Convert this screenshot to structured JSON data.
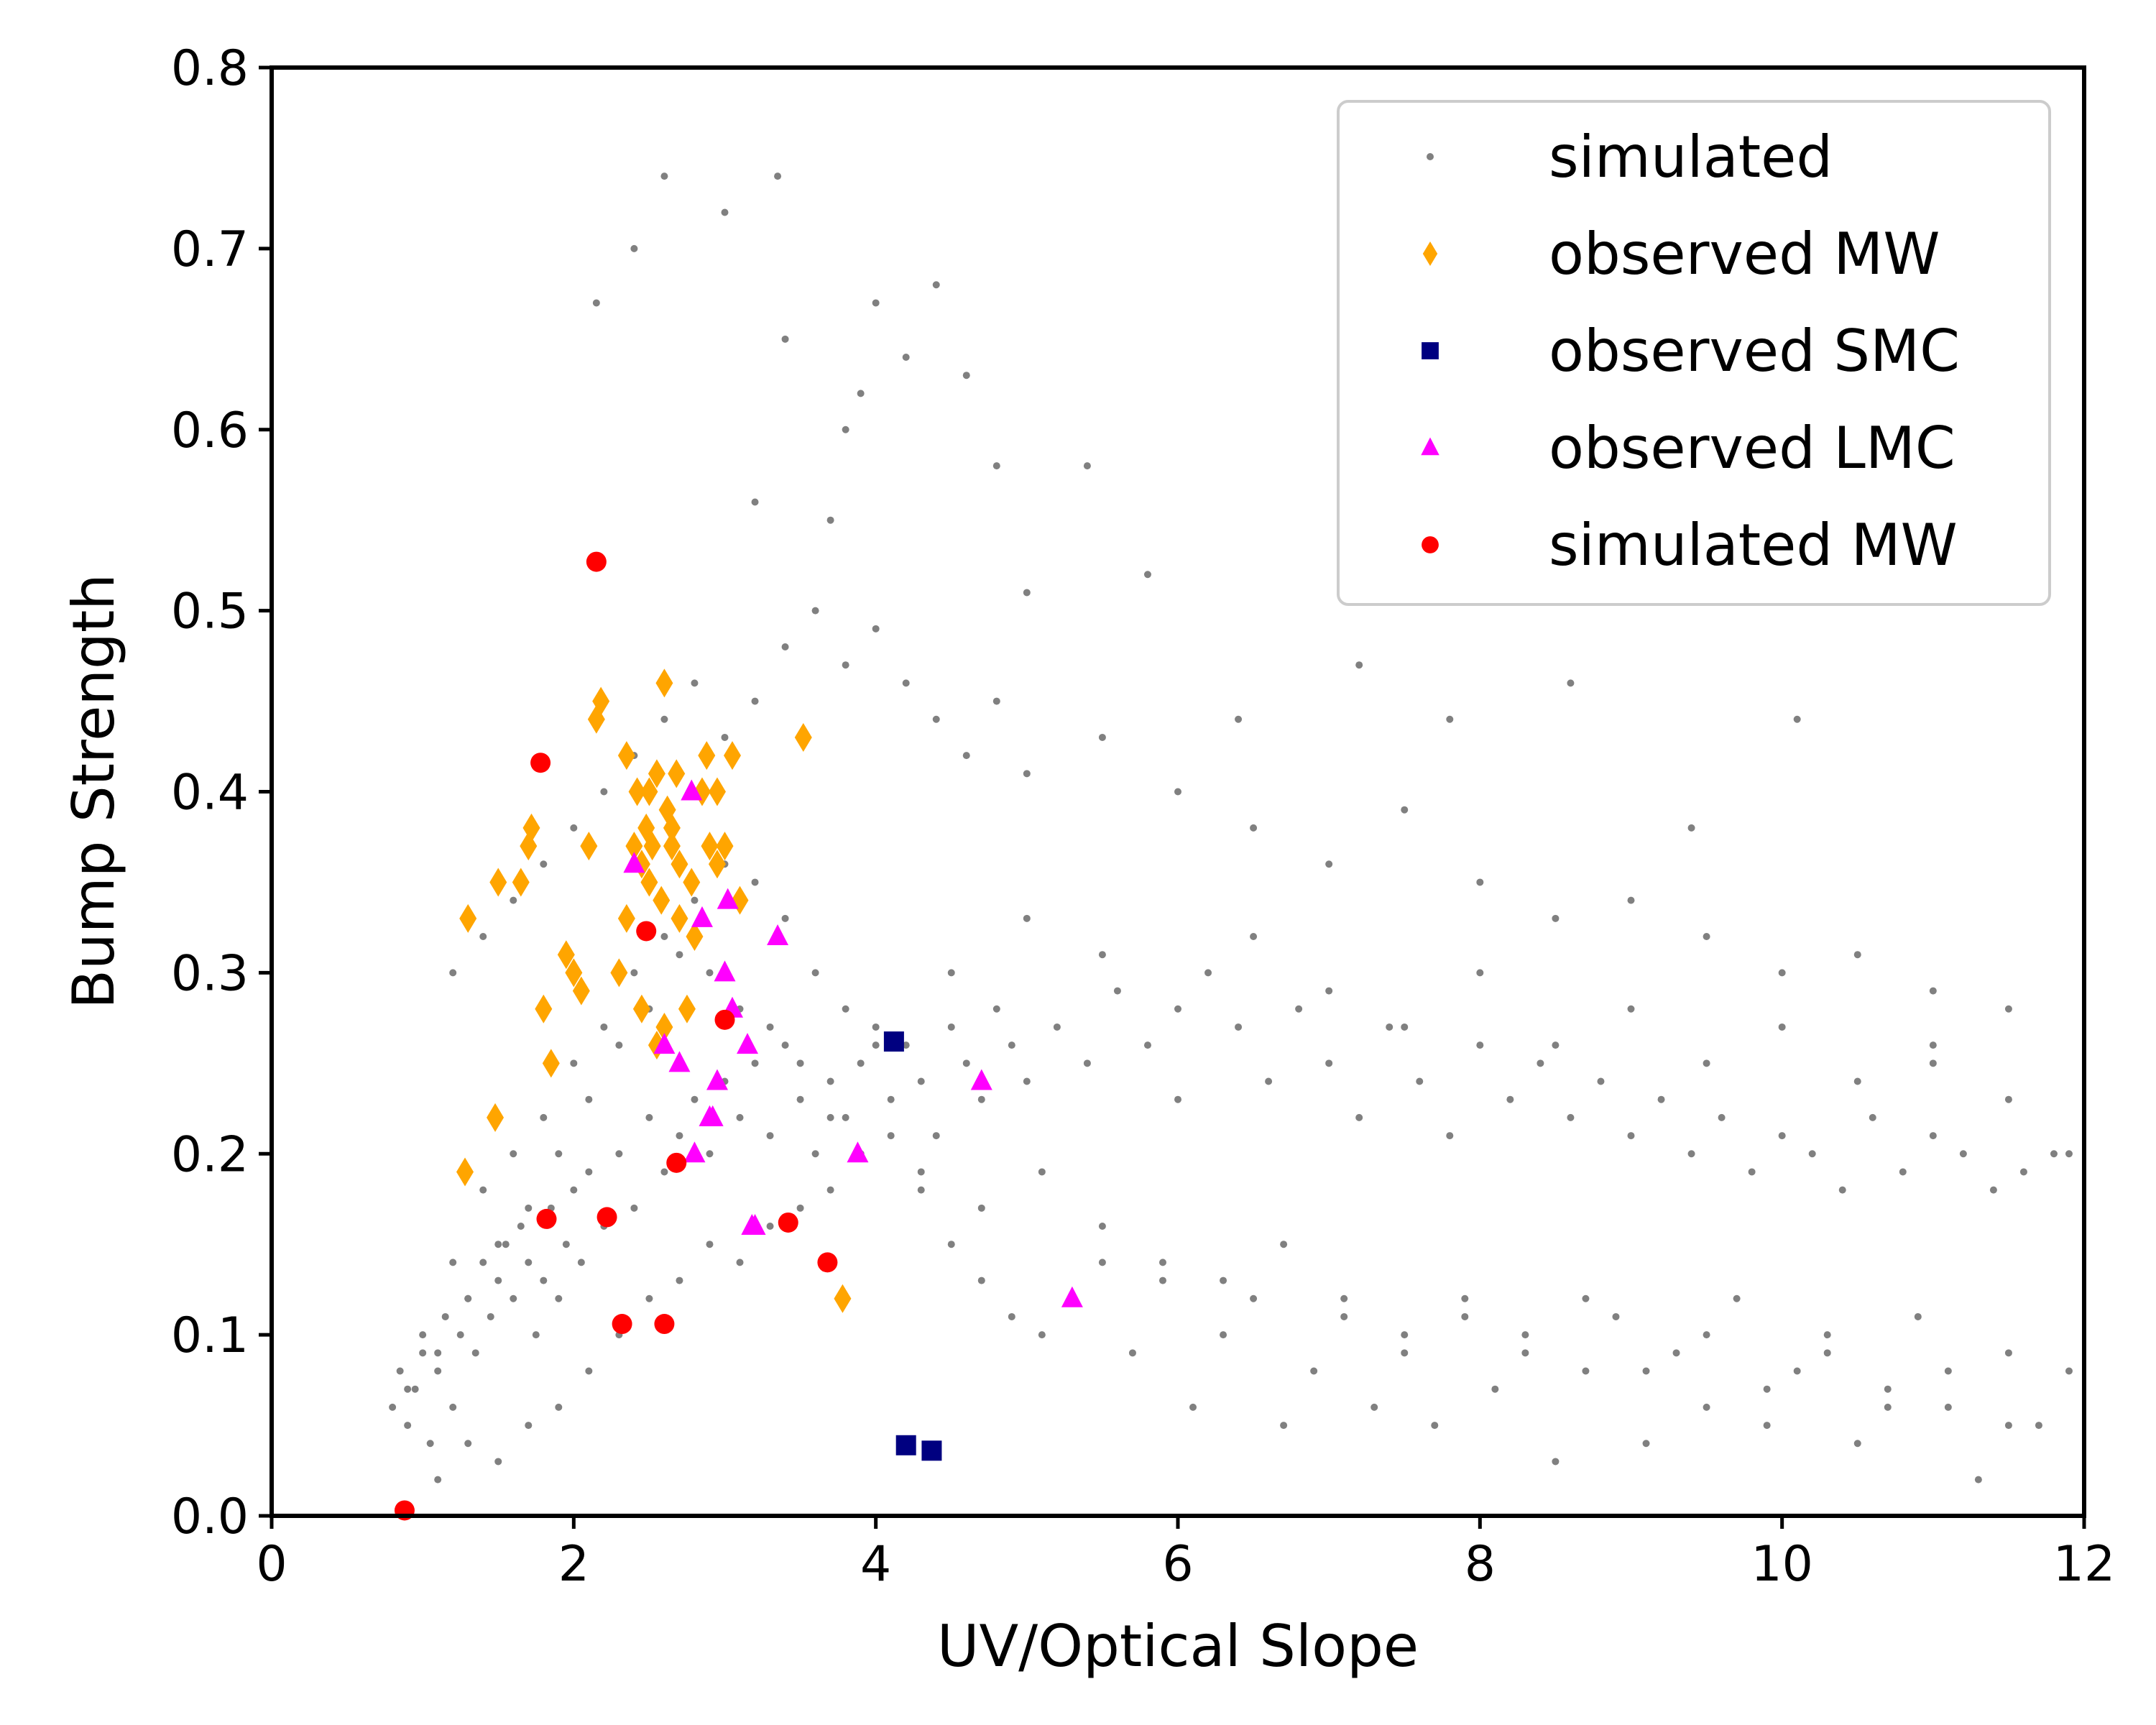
{
  "chart_data": {
    "type": "scatter",
    "title": "",
    "xlabel": "UV/Optical Slope",
    "ylabel": "Bump Strength",
    "xlim": [
      0,
      12
    ],
    "ylim": [
      0,
      0.8
    ],
    "xticks": [
      0,
      2,
      4,
      6,
      8,
      10,
      12
    ],
    "xtick_labels": [
      "0",
      "2",
      "4",
      "6",
      "8",
      "10",
      "12"
    ],
    "yticks": [
      0.0,
      0.1,
      0.2,
      0.3,
      0.4,
      0.5,
      0.6,
      0.7,
      0.8
    ],
    "ytick_labels": [
      "0.0",
      "0.1",
      "0.2",
      "0.3",
      "0.4",
      "0.5",
      "0.6",
      "0.7",
      "0.8"
    ],
    "grid": false,
    "legend_position": "top-right",
    "series": [
      {
        "name": "simulated",
        "marker": "point",
        "color": "#808080",
        "x": [
          0.8,
          0.85,
          0.9,
          0.95,
          1.0,
          1.05,
          1.1,
          1.15,
          1.2,
          1.25,
          1.3,
          1.35,
          1.4,
          1.45,
          1.5,
          1.55,
          1.6,
          1.65,
          1.7,
          1.75,
          1.8,
          1.85,
          1.9,
          1.95,
          2.0,
          2.05,
          2.1,
          2.2,
          2.3,
          2.4,
          2.5,
          2.6,
          2.7,
          2.8,
          2.9,
          3.0,
          3.1,
          3.2,
          3.3,
          3.4,
          3.5,
          3.6,
          3.7,
          3.8,
          3.9,
          4.0,
          4.1,
          4.2,
          4.3,
          4.4,
          4.5,
          4.6,
          4.7,
          4.8,
          4.9,
          5.0,
          5.2,
          5.4,
          5.6,
          5.8,
          6.0,
          6.2,
          6.4,
          6.6,
          6.8,
          7.0,
          7.2,
          7.4,
          7.6,
          7.8,
          8.0,
          8.2,
          8.4,
          8.6,
          8.8,
          9.0,
          9.2,
          9.4,
          9.6,
          9.8,
          10.0,
          10.2,
          10.4,
          10.6,
          10.8,
          11.0,
          11.2,
          11.4,
          11.6,
          11.8,
          1.1,
          1.3,
          1.5,
          1.7,
          1.9,
          2.1,
          2.3,
          2.5,
          2.7,
          2.9,
          3.1,
          3.3,
          3.5,
          3.7,
          3.9,
          4.1,
          4.3,
          4.5,
          4.7,
          4.9,
          5.1,
          5.3,
          5.5,
          5.7,
          5.9,
          6.1,
          6.3,
          6.5,
          6.7,
          6.9,
          7.1,
          7.3,
          7.5,
          7.7,
          7.9,
          8.1,
          8.3,
          8.5,
          8.7,
          8.9,
          9.1,
          9.3,
          9.5,
          9.7,
          9.9,
          10.1,
          10.3,
          10.5,
          10.7,
          10.9,
          11.1,
          11.3,
          11.5,
          11.7,
          11.9,
          1.2,
          1.4,
          1.6,
          1.8,
          2.0,
          2.2,
          2.4,
          2.6,
          2.8,
          3.0,
          3.2,
          3.4,
          3.6,
          3.8,
          4.0,
          4.2,
          4.4,
          4.6,
          4.8,
          5.0,
          5.5,
          6.0,
          6.5,
          7.0,
          7.5,
          8.0,
          8.5,
          9.0,
          9.5,
          10.0,
          10.5,
          11.0,
          11.5,
          2.15,
          2.4,
          2.6,
          3.2,
          3.35,
          3.7,
          3.9,
          4.0,
          4.4,
          4.8,
          5.4,
          3.0,
          3.4,
          3.8,
          4.2,
          4.6,
          5.0,
          5.8,
          6.4,
          7.2,
          7.8,
          8.6,
          9.4,
          10.1,
          11.0,
          1.0,
          1.2,
          1.4,
          1.6,
          1.8,
          2.0,
          2.2,
          2.4,
          2.6,
          2.8,
          3.0,
          3.2,
          3.4,
          3.6,
          3.8,
          4.0,
          4.5,
          5.0,
          5.5,
          6.0,
          6.5,
          7.0,
          7.5,
          8.0,
          8.5,
          9.0,
          9.5,
          10.0,
          10.5,
          11.0,
          11.5,
          11.9,
          0.9,
          1.1,
          1.3,
          1.5,
          1.7,
          1.9,
          2.1,
          2.3,
          2.5,
          2.7,
          2.9,
          3.1,
          3.3,
          3.5,
          3.7,
          3.9,
          4.3,
          4.7,
          5.1,
          5.5,
          5.9,
          6.3,
          6.7,
          7.1,
          7.5,
          7.9,
          8.3,
          8.7,
          9.1,
          9.5,
          9.9,
          10.3,
          10.7,
          11.1,
          11.5
        ],
        "y": [
          0.06,
          0.08,
          0.05,
          0.07,
          0.09,
          0.04,
          0.08,
          0.11,
          0.06,
          0.1,
          0.12,
          0.09,
          0.14,
          0.11,
          0.13,
          0.15,
          0.12,
          0.16,
          0.14,
          0.1,
          0.13,
          0.17,
          0.12,
          0.15,
          0.18,
          0.14,
          0.19,
          0.16,
          0.2,
          0.17,
          0.22,
          0.19,
          0.21,
          0.23,
          0.2,
          0.24,
          0.22,
          0.25,
          0.21,
          0.26,
          0.23,
          0.2,
          0.24,
          0.22,
          0.25,
          0.27,
          0.23,
          0.26,
          0.24,
          0.21,
          0.27,
          0.25,
          0.23,
          0.28,
          0.26,
          0.24,
          0.27,
          0.25,
          0.29,
          0.26,
          0.23,
          0.3,
          0.27,
          0.24,
          0.28,
          0.25,
          0.22,
          0.27,
          0.24,
          0.21,
          0.26,
          0.23,
          0.25,
          0.22,
          0.24,
          0.21,
          0.23,
          0.2,
          0.22,
          0.19,
          0.21,
          0.2,
          0.18,
          0.22,
          0.19,
          0.21,
          0.2,
          0.18,
          0.19,
          0.2,
          0.02,
          0.04,
          0.03,
          0.05,
          0.06,
          0.08,
          0.1,
          0.12,
          0.13,
          0.15,
          0.14,
          0.16,
          0.17,
          0.18,
          0.2,
          0.21,
          0.19,
          0.15,
          0.13,
          0.11,
          0.1,
          0.12,
          0.14,
          0.09,
          0.13,
          0.06,
          0.1,
          0.12,
          0.05,
          0.08,
          0.11,
          0.06,
          0.09,
          0.05,
          0.12,
          0.07,
          0.1,
          0.03,
          0.08,
          0.11,
          0.04,
          0.09,
          0.06,
          0.12,
          0.05,
          0.08,
          0.1,
          0.04,
          0.07,
          0.11,
          0.06,
          0.02,
          0.09,
          0.05,
          0.08,
          0.3,
          0.32,
          0.34,
          0.36,
          0.38,
          0.4,
          0.42,
          0.44,
          0.46,
          0.43,
          0.45,
          0.48,
          0.5,
          0.47,
          0.49,
          0.46,
          0.44,
          0.42,
          0.45,
          0.41,
          0.43,
          0.4,
          0.38,
          0.36,
          0.39,
          0.35,
          0.33,
          0.34,
          0.32,
          0.3,
          0.31,
          0.29,
          0.28,
          0.67,
          0.7,
          0.74,
          0.56,
          0.74,
          0.55,
          0.62,
          0.67,
          0.68,
          0.58,
          0.58,
          0.72,
          0.65,
          0.6,
          0.64,
          0.63,
          0.51,
          0.52,
          0.44,
          0.47,
          0.44,
          0.46,
          0.38,
          0.44,
          0.25,
          0.1,
          0.14,
          0.18,
          0.2,
          0.22,
          0.25,
          0.27,
          0.3,
          0.32,
          0.34,
          0.36,
          0.35,
          0.33,
          0.3,
          0.28,
          0.26,
          0.3,
          0.33,
          0.31,
          0.28,
          0.32,
          0.29,
          0.27,
          0.3,
          0.26,
          0.28,
          0.25,
          0.27,
          0.24,
          0.26,
          0.23,
          0.2,
          0.07,
          0.09,
          0.12,
          0.15,
          0.17,
          0.2,
          0.23,
          0.26,
          0.28,
          0.31,
          0.3,
          0.28,
          0.27,
          0.25,
          0.22,
          0.2,
          0.18,
          0.17,
          0.19,
          0.16,
          0.14,
          0.13,
          0.15,
          0.12,
          0.1,
          0.11,
          0.09,
          0.12,
          0.08,
          0.1,
          0.07,
          0.09,
          0.06,
          0.08,
          0.05
        ]
      },
      {
        "name": "observed MW",
        "marker": "diamond",
        "color": "#FFA500",
        "x": [
          1.28,
          1.3,
          1.48,
          1.5,
          1.65,
          1.7,
          1.72,
          1.8,
          1.85,
          1.95,
          2.0,
          2.05,
          2.1,
          2.15,
          2.18,
          2.3,
          2.35,
          2.4,
          2.42,
          2.45,
          2.48,
          2.5,
          2.52,
          2.55,
          2.58,
          2.6,
          2.62,
          2.65,
          2.68,
          2.7,
          2.75,
          2.78,
          2.8,
          2.85,
          2.88,
          2.9,
          2.95,
          3.0,
          3.05,
          3.1,
          3.52,
          3.78,
          2.55,
          2.6,
          2.45,
          2.5,
          2.7,
          2.95,
          2.35,
          2.65
        ],
        "y": [
          0.19,
          0.33,
          0.22,
          0.35,
          0.35,
          0.37,
          0.38,
          0.28,
          0.25,
          0.31,
          0.3,
          0.29,
          0.37,
          0.44,
          0.45,
          0.3,
          0.42,
          0.37,
          0.4,
          0.36,
          0.38,
          0.35,
          0.37,
          0.41,
          0.34,
          0.46,
          0.39,
          0.38,
          0.41,
          0.36,
          0.28,
          0.35,
          0.32,
          0.4,
          0.42,
          0.37,
          0.36,
          0.37,
          0.42,
          0.34,
          0.43,
          0.12,
          0.26,
          0.27,
          0.28,
          0.4,
          0.33,
          0.4,
          0.33,
          0.37
        ]
      },
      {
        "name": "observed SMC",
        "marker": "square",
        "color": "#000080",
        "x": [
          4.12,
          4.2,
          4.37
        ],
        "y": [
          0.262,
          0.039,
          0.036
        ]
      },
      {
        "name": "observed LMC",
        "marker": "triangle",
        "color": "#FF00FF",
        "x": [
          2.4,
          2.6,
          2.7,
          2.8,
          2.85,
          2.9,
          2.95,
          3.0,
          3.02,
          3.05,
          3.15,
          3.2,
          3.35,
          3.88,
          4.7,
          5.3,
          2.78,
          2.92,
          3.18
        ],
        "y": [
          0.36,
          0.26,
          0.25,
          0.2,
          0.33,
          0.22,
          0.24,
          0.3,
          0.34,
          0.28,
          0.26,
          0.16,
          0.32,
          0.2,
          0.24,
          0.12,
          0.4,
          0.22,
          0.16
        ]
      },
      {
        "name": "simulated MW",
        "marker": "circle",
        "color": "#FF0000",
        "x": [
          0.88,
          1.78,
          1.82,
          2.15,
          2.22,
          2.32,
          2.48,
          2.6,
          2.68,
          3.0,
          3.42,
          3.68
        ],
        "y": [
          0.003,
          0.416,
          0.164,
          0.527,
          0.165,
          0.106,
          0.323,
          0.106,
          0.195,
          0.274,
          0.162,
          0.14
        ]
      }
    ]
  }
}
